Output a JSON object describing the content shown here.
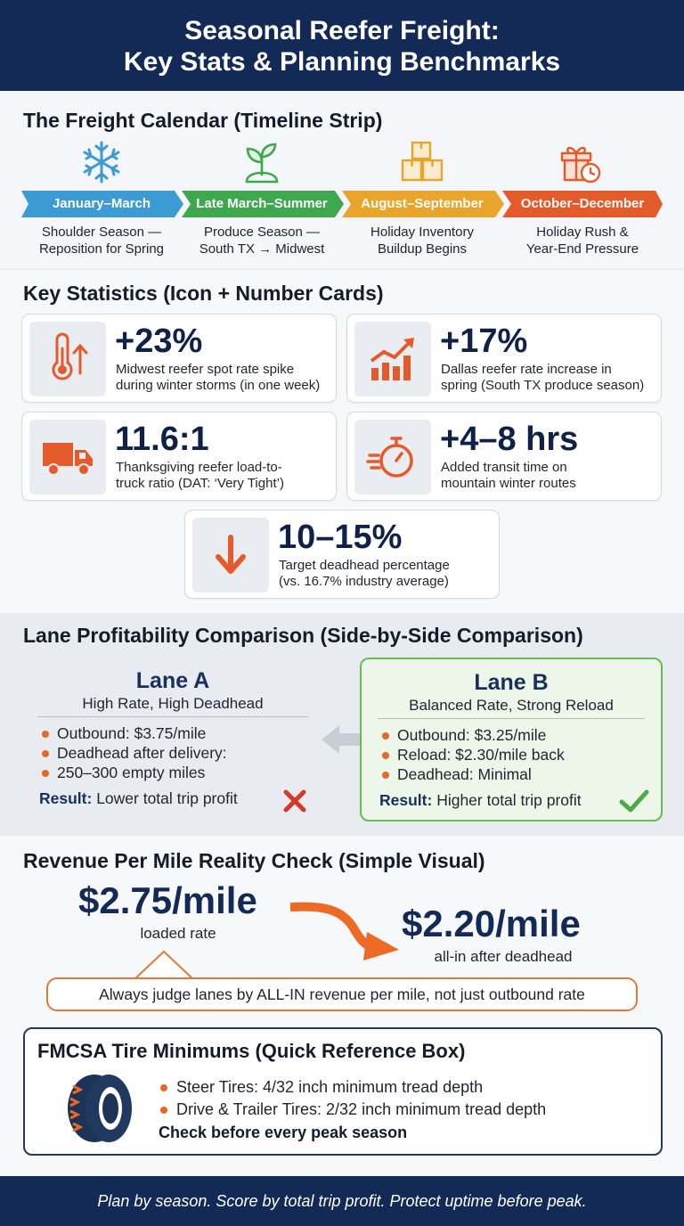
{
  "header": {
    "title_line1": "Seasonal Reefer Freight:",
    "title_line2": "Key Stats & Planning Benchmarks"
  },
  "timeline": {
    "title": "The Freight Calendar (Timeline Strip)",
    "segments": [
      {
        "label": "January–March",
        "description_line1": "Shoulder Season —",
        "description_line2": "Reposition for Spring",
        "icon": "snowflake-icon",
        "color": "#3d9bd3"
      },
      {
        "label": "Late March–Summer",
        "description_line1": "Produce Season —",
        "description_line2": "South TX → Midwest",
        "icon": "sprout-icon",
        "color": "#3fa84f"
      },
      {
        "label": "August–September",
        "description_line1": "Holiday Inventory",
        "description_line2": "Buildup Begins",
        "icon": "boxes-icon",
        "color": "#e9a52b"
      },
      {
        "label": "October–December",
        "description_line1": "Holiday Rush &",
        "description_line2": "Year-End Pressure",
        "icon": "gift-clock-icon",
        "color": "#e55a2b"
      }
    ]
  },
  "stats": {
    "title": "Key Statistics (Icon + Number Cards)",
    "cards": [
      {
        "value": "+23%",
        "caption_line1": "Midwest reefer spot rate spike",
        "caption_line2": "during winter storms (in one week)",
        "icon": "thermometer-up-icon"
      },
      {
        "value": "+17%",
        "caption_line1": "Dallas reefer rate increase in",
        "caption_line2": "spring (South TX produce season)",
        "icon": "bar-chart-up-icon"
      },
      {
        "value": "11.6:1",
        "caption_line1": "Thanksgiving reefer load-to-",
        "caption_line2": "truck ratio (DAT: ‘Very Tight’)",
        "icon": "truck-icon"
      },
      {
        "value": "+4–8 hrs",
        "caption_line1": "Added transit time on",
        "caption_line2": "mountain winter routes",
        "icon": "stopwatch-icon"
      },
      {
        "value": "10–15%",
        "caption_line1": "Target deadhead percentage",
        "caption_line2": "(vs. 16.7% industry average)",
        "icon": "down-arrow-icon"
      }
    ]
  },
  "lanes": {
    "title": "Lane Profitability Comparison (Side-by-Side Comparison)",
    "lane_a": {
      "name": "Lane A",
      "subtitle": "High Rate, High Deadhead",
      "bullets": [
        "Outbound: $3.75/mile",
        "Deadhead after delivery:",
        "250–300 empty miles"
      ],
      "result_label": "Result:",
      "result_text": "Lower total trip profit"
    },
    "lane_b": {
      "name": "Lane B",
      "subtitle": "Balanced Rate, Strong Reload",
      "bullets": [
        "Outbound: $3.25/mile",
        "Reload: $2.30/mile back",
        "Deadhead: Minimal"
      ],
      "result_label": "Result:",
      "result_text": "Higher total trip profit"
    }
  },
  "revenue": {
    "title": "Revenue Per Mile Reality Check (Simple Visual)",
    "loaded_value": "$2.75/mile",
    "loaded_label": "loaded rate",
    "allin_value": "$2.20/mile",
    "allin_label": "all-in after deadhead",
    "callout": "Always judge lanes by ALL-IN revenue per mile, not just outbound rate"
  },
  "fmcsa": {
    "title": "FMCSA Tire Minimums (Quick Reference Box)",
    "items": [
      "Steer Tires: 4/32 inch minimum tread depth",
      "Drive & Trailer Tires: 2/32 inch minimum tread depth"
    ],
    "note": "Check before every peak season"
  },
  "footer": {
    "text": "Plan by season. Score by total trip profit. Protect uptime before peak."
  }
}
